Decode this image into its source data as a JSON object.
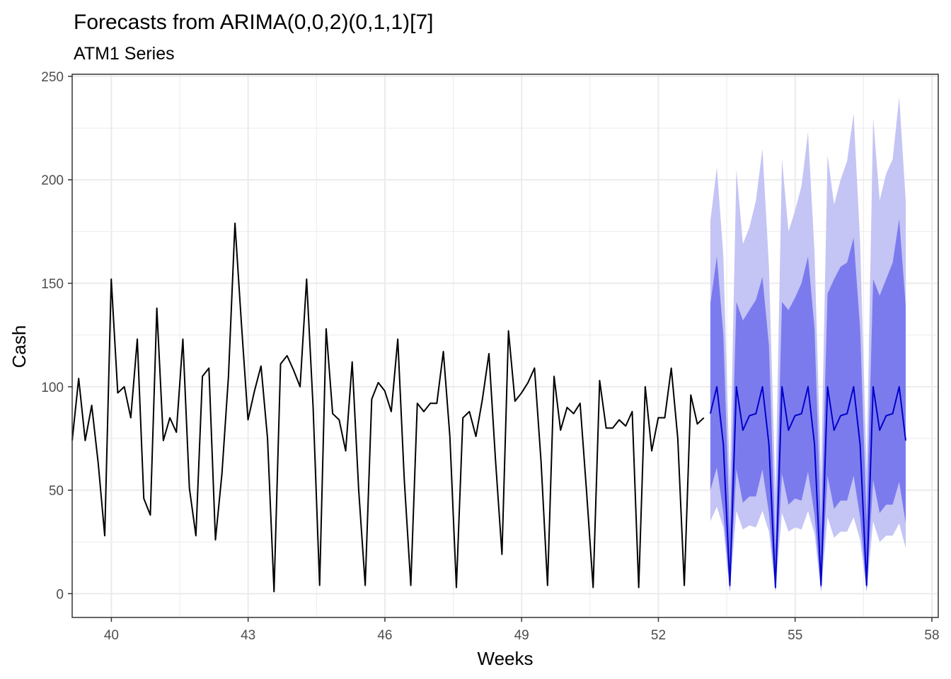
{
  "chart_data": {
    "type": "line",
    "title": "Forecasts from ARIMA(0,0,2)(0,1,1)[7]",
    "subtitle": "ATM1 Series",
    "xlabel": "Weeks",
    "ylabel": "Cash",
    "xlim": [
      39.14,
      58.14
    ],
    "ylim": [
      -11.5,
      251
    ],
    "x_ticks": [
      40,
      43,
      46,
      49,
      52,
      55,
      58
    ],
    "x_tick_labels": [
      "40",
      "43",
      "46",
      "49",
      "52",
      "55",
      "58"
    ],
    "y_ticks": [
      0,
      50,
      100,
      150,
      200,
      250
    ],
    "y_tick_labels": [
      "0",
      "50",
      "100",
      "150",
      "200",
      "250"
    ],
    "grid": true,
    "colors": {
      "observed": "#000000",
      "forecast": "#0000cc",
      "pi80": "#7b7bee",
      "pi95": "#c4c4f5",
      "grid": "#ebebeb",
      "panel_border": "#333333"
    },
    "observed": {
      "x_start": 39.14,
      "x_step": 0.142857,
      "values": [
        74,
        104,
        74,
        91,
        63,
        28,
        152,
        97,
        100,
        85,
        123,
        46,
        38,
        138,
        74,
        85,
        78,
        123,
        51,
        28,
        105,
        109,
        26,
        58,
        105,
        179,
        130,
        84,
        98,
        110,
        75,
        1,
        111,
        115,
        108,
        100,
        152,
        90,
        4,
        128,
        87,
        84,
        69,
        112,
        50,
        4,
        94,
        102,
        98,
        88,
        123,
        55,
        4,
        92,
        88,
        92,
        92,
        117,
        76,
        3,
        85,
        88,
        76,
        94,
        116,
        65,
        19,
        127,
        93,
        97,
        102,
        109,
        64,
        4,
        105,
        79,
        90,
        87,
        92,
        49,
        3,
        103,
        80,
        80,
        84,
        81,
        88,
        3,
        100,
        69,
        85,
        85,
        109,
        75,
        4,
        96,
        82,
        85
      ]
    },
    "forecast": {
      "x_start": 53.14,
      "x_step": 0.142857,
      "mean": [
        87,
        100,
        72,
        4,
        100,
        79,
        86,
        87,
        100,
        72,
        3,
        100,
        79,
        86,
        87,
        100,
        72,
        4,
        100,
        79,
        86,
        87,
        100,
        72,
        4,
        100,
        79,
        86,
        87,
        100,
        74
      ],
      "lo80": [
        50,
        61,
        39,
        1,
        60,
        44,
        47,
        47,
        60,
        39,
        1,
        58,
        43,
        46,
        45,
        59,
        38,
        1,
        57,
        41,
        45,
        45,
        57,
        37,
        1,
        55,
        39,
        43,
        43,
        54,
        34
      ],
      "hi80": [
        140,
        163,
        125,
        29,
        141,
        132,
        137,
        142,
        153,
        120,
        21,
        141,
        137,
        143,
        150,
        163,
        128,
        30,
        145,
        152,
        158,
        160,
        172,
        128,
        35,
        152,
        144,
        152,
        160,
        181,
        139
      ],
      "lo95": [
        35,
        42,
        32,
        1,
        40,
        31,
        33,
        32,
        40,
        30,
        1,
        39,
        30,
        32,
        31,
        40,
        29,
        1,
        37,
        27,
        30,
        30,
        37,
        26,
        1,
        35,
        25,
        28,
        28,
        34,
        22
      ],
      "hi95": [
        180,
        206,
        163,
        53,
        205,
        169,
        177,
        190,
        215,
        158,
        48,
        210,
        175,
        185,
        197,
        223,
        165,
        55,
        212,
        188,
        200,
        209,
        232,
        170,
        59,
        230,
        190,
        203,
        210,
        240,
        190
      ]
    }
  }
}
